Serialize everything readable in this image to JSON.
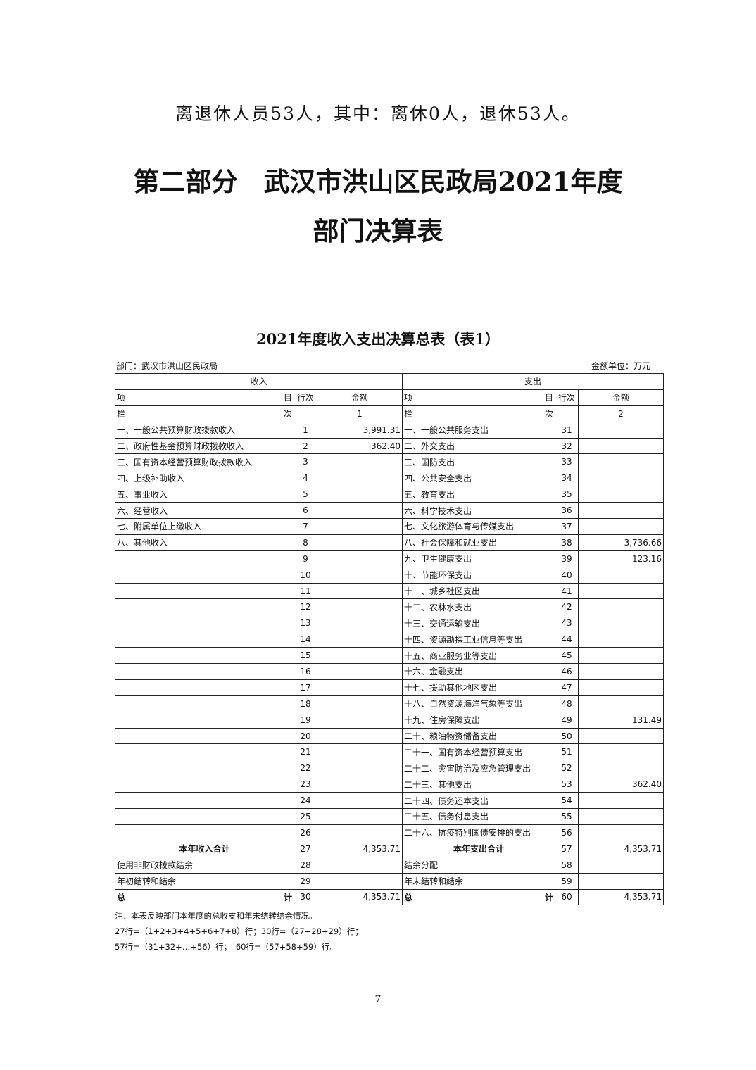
{
  "intro_line": "离退休人员53人，其中：离休0人，退休53人。",
  "heading_line1": "第二部分　武汉市洪山区民政局2021年度",
  "heading_line2": "部门决算表",
  "table_title": "2021年度收入支出决算总表（表1）",
  "department": "部门：武汉市洪山区民政局",
  "unit": "金额单位：万元",
  "headers": {
    "income": "收入",
    "expense": "支出",
    "item_left": "项",
    "item_right": "目",
    "row_no": "行次",
    "amount": "金额",
    "col_left": "栏",
    "col_right": "次",
    "col_income": "1",
    "col_expense": "2"
  },
  "rows": [
    [
      "一、一般公共预算财政拨款收入",
      "1",
      "3,991.31",
      "一、一般公共服务支出",
      "31",
      ""
    ],
    [
      "二、政府性基金预算财政拨款收入",
      "2",
      "362.40",
      "二、外交支出",
      "32",
      ""
    ],
    [
      "三、国有资本经营预算财政拨款收入",
      "3",
      "",
      "三、国防支出",
      "33",
      ""
    ],
    [
      "四、上级补助收入",
      "4",
      "",
      "四、公共安全支出",
      "34",
      ""
    ],
    [
      "五、事业收入",
      "5",
      "",
      "五、教育支出",
      "35",
      ""
    ],
    [
      "六、经营收入",
      "6",
      "",
      "六、科学技术支出",
      "36",
      ""
    ],
    [
      "七、附属单位上缴收入",
      "7",
      "",
      "七、文化旅游体育与传媒支出",
      "37",
      ""
    ],
    [
      "八、其他收入",
      "8",
      "",
      "八、社会保障和就业支出",
      "38",
      "3,736.66"
    ],
    [
      "",
      "9",
      "",
      "九、卫生健康支出",
      "39",
      "123.16"
    ],
    [
      "",
      "10",
      "",
      "十、节能环保支出",
      "40",
      ""
    ],
    [
      "",
      "11",
      "",
      "十一、城乡社区支出",
      "41",
      ""
    ],
    [
      "",
      "12",
      "",
      "十二、农林水支出",
      "42",
      ""
    ],
    [
      "",
      "13",
      "",
      "十三、交通运输支出",
      "43",
      ""
    ],
    [
      "",
      "14",
      "",
      "十四、资源勘探工业信息等支出",
      "44",
      ""
    ],
    [
      "",
      "15",
      "",
      "十五、商业服务业等支出",
      "45",
      ""
    ],
    [
      "",
      "16",
      "",
      "十六、金融支出",
      "46",
      ""
    ],
    [
      "",
      "17",
      "",
      "十七、援助其他地区支出",
      "47",
      ""
    ],
    [
      "",
      "18",
      "",
      "十八、自然资源海洋气象等支出",
      "48",
      ""
    ],
    [
      "",
      "19",
      "",
      "十九、住房保障支出",
      "49",
      "131.49"
    ],
    [
      "",
      "20",
      "",
      "二十、粮油物资储备支出",
      "50",
      ""
    ],
    [
      "",
      "21",
      "",
      "二十一、国有资本经营预算支出",
      "51",
      ""
    ],
    [
      "",
      "22",
      "",
      "二十二、灾害防治及应急管理支出",
      "52",
      ""
    ],
    [
      "",
      "23",
      "",
      "二十三、其他支出",
      "53",
      "362.40"
    ],
    [
      "",
      "24",
      "",
      "二十四、债务还本支出",
      "54",
      ""
    ],
    [
      "",
      "25",
      "",
      "二十五、债务付息支出",
      "55",
      ""
    ],
    [
      "",
      "26",
      "",
      "二十六、抗疫特别国债安排的支出",
      "56",
      ""
    ]
  ],
  "subtotal": [
    "本年收入合计",
    "27",
    "4,353.71",
    "本年支出合计",
    "57",
    "4,353.71"
  ],
  "extra_rows": [
    [
      "使用非财政拨款结余",
      "28",
      "",
      "结余分配",
      "58",
      ""
    ],
    [
      "年初结转和结余",
      "29",
      "",
      "年末结转和结余",
      "59",
      ""
    ]
  ],
  "total": {
    "left_a": "总",
    "left_b": "计",
    "row_left": "30",
    "amount_left": "4,353.71",
    "right_a": "总",
    "right_b": "计",
    "row_right": "60",
    "amount_right": "4,353.71"
  },
  "notes": [
    "注：本表反映部门本年度的总收支和年末结转结余情况。",
    "27行=（1+2+3+4+5+6+7+8）行；30行=（27+28+29）行；",
    "57行=（31+32+…+56）行；　60行=（57+58+59）行。"
  ],
  "page_number": "7"
}
